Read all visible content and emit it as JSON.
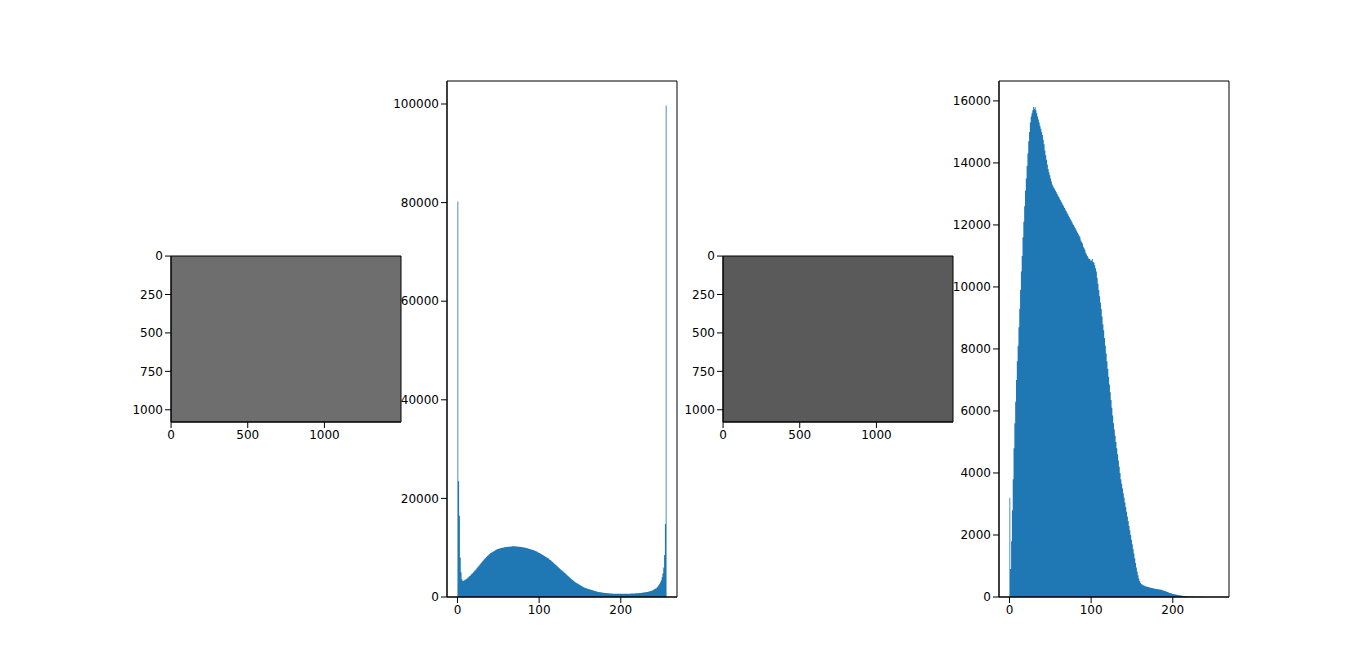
{
  "chart_data": [
    {
      "type": "image",
      "color": "#6e6e6e",
      "xlim": [
        -0.5,
        1499.5
      ],
      "ylim": [
        1079.5,
        -0.5
      ],
      "xticks": [
        0,
        500,
        1000
      ],
      "yticks": [
        0,
        250,
        500,
        750,
        1000
      ]
    },
    {
      "type": "histogram",
      "color": "#1f77b4",
      "xlim": [
        -12.8,
        268.8
      ],
      "ylim": [
        0,
        104665
      ],
      "xticks": [
        0,
        100,
        200
      ],
      "yticks": [
        0,
        20000,
        40000,
        60000,
        80000,
        100000
      ],
      "bins": [
        0,
        1,
        2,
        3,
        4,
        5,
        6,
        7,
        8,
        9,
        10,
        11,
        12,
        13,
        14,
        15,
        16,
        17,
        18,
        19,
        20,
        21,
        22,
        23,
        24,
        25,
        26,
        27,
        28,
        29,
        30,
        31,
        32,
        33,
        34,
        35,
        36,
        37,
        38,
        39,
        40,
        41,
        42,
        43,
        44,
        45,
        46,
        47,
        48,
        49,
        50,
        51,
        52,
        53,
        54,
        55,
        56,
        57,
        58,
        59,
        60,
        61,
        62,
        63,
        64,
        65,
        66,
        67,
        68,
        69,
        70,
        71,
        72,
        73,
        74,
        75,
        76,
        77,
        78,
        79,
        80,
        81,
        82,
        83,
        84,
        85,
        86,
        87,
        88,
        89,
        90,
        91,
        92,
        93,
        94,
        95,
        96,
        97,
        98,
        99,
        100,
        101,
        102,
        103,
        104,
        105,
        106,
        107,
        108,
        109,
        110,
        111,
        112,
        113,
        114,
        115,
        116,
        117,
        118,
        119,
        120,
        121,
        122,
        123,
        124,
        125,
        126,
        127,
        128,
        129,
        130,
        131,
        132,
        133,
        134,
        135,
        136,
        137,
        138,
        139,
        140,
        141,
        142,
        143,
        144,
        145,
        146,
        147,
        148,
        149,
        150,
        151,
        152,
        153,
        154,
        155,
        156,
        157,
        158,
        159,
        160,
        161,
        162,
        163,
        164,
        165,
        166,
        167,
        168,
        169,
        170,
        171,
        172,
        173,
        174,
        175,
        176,
        177,
        178,
        179,
        180,
        181,
        182,
        183,
        184,
        185,
        186,
        187,
        188,
        189,
        190,
        191,
        192,
        193,
        194,
        195,
        196,
        197,
        198,
        199,
        200,
        201,
        202,
        203,
        204,
        205,
        206,
        207,
        208,
        209,
        210,
        211,
        212,
        213,
        214,
        215,
        216,
        217,
        218,
        219,
        220,
        221,
        222,
        223,
        224,
        225,
        226,
        227,
        228,
        229,
        230,
        231,
        232,
        233,
        234,
        235,
        236,
        237,
        238,
        239,
        240,
        241,
        242,
        243,
        244,
        245,
        246,
        247,
        248,
        249,
        250,
        251,
        252,
        253,
        254,
        255,
        256
      ],
      "counts": [
        80200,
        23500,
        16500,
        8000,
        5000,
        3600,
        3300,
        3300,
        3400,
        3500,
        3600,
        3700,
        3900,
        4000,
        4200,
        4300,
        4500,
        4700,
        4800,
        5000,
        5200,
        5400,
        5600,
        5800,
        6000,
        6200,
        6400,
        6600,
        6800,
        7000,
        7200,
        7400,
        7600,
        7800,
        7900,
        8100,
        8300,
        8400,
        8600,
        8700,
        8900,
        9000,
        9100,
        9200,
        9300,
        9400,
        9500,
        9600,
        9700,
        9750,
        9800,
        9850,
        9900,
        9950,
        10000,
        10000,
        10050,
        10100,
        10100,
        10150,
        10150,
        10200,
        10200,
        10200,
        10250,
        10250,
        10250,
        10300,
        10300,
        10300,
        10300,
        10250,
        10250,
        10250,
        10200,
        10200,
        10200,
        10150,
        10150,
        10100,
        10100,
        10050,
        10000,
        10000,
        9950,
        9900,
        9850,
        9800,
        9750,
        9700,
        9650,
        9600,
        9550,
        9500,
        9400,
        9350,
        9300,
        9200,
        9100,
        9000,
        8900,
        8800,
        8700,
        8600,
        8500,
        8400,
        8300,
        8200,
        8100,
        8000,
        7900,
        7800,
        7650,
        7500,
        7400,
        7250,
        7100,
        6950,
        6800,
        6650,
        6500,
        6350,
        6200,
        6050,
        5900,
        5750,
        5600,
        5450,
        5300,
        5150,
        5000,
        4850,
        4700,
        4550,
        4400,
        4250,
        4100,
        3950,
        3800,
        3650,
        3500,
        3400,
        3250,
        3100,
        3000,
        2900,
        2800,
        2700,
        2600,
        2500,
        2400,
        2300,
        2200,
        2100,
        2000,
        1950,
        1850,
        1800,
        1700,
        1650,
        1600,
        1550,
        1500,
        1450,
        1400,
        1350,
        1300,
        1250,
        1200,
        1150,
        1100,
        1050,
        1000,
        1000,
        950,
        950,
        900,
        900,
        850,
        850,
        800,
        800,
        800,
        750,
        750,
        750,
        700,
        700,
        700,
        700,
        650,
        650,
        650,
        650,
        650,
        650,
        650,
        650,
        650,
        650,
        650,
        650,
        650,
        650,
        650,
        650,
        650,
        650,
        650,
        650,
        650,
        650,
        700,
        700,
        700,
        700,
        700,
        700,
        750,
        750,
        750,
        750,
        800,
        800,
        800,
        850,
        850,
        900,
        900,
        950,
        950,
        1000,
        1000,
        1050,
        1100,
        1150,
        1200,
        1250,
        1300,
        1400,
        1500,
        1600,
        1700,
        1800,
        2000,
        2200,
        2400,
        2700,
        3000,
        3400,
        4000,
        4800,
        6000,
        8500,
        14800,
        99700
      ]
    },
    {
      "type": "image",
      "color": "#5a5a5a",
      "xlim": [
        -0.5,
        1499.5
      ],
      "ylim": [
        1079.5,
        -0.5
      ],
      "xticks": [
        0,
        500,
        1000
      ],
      "yticks": [
        0,
        250,
        500,
        750,
        1000
      ]
    },
    {
      "type": "histogram",
      "color": "#1f77b4",
      "xlim": [
        -12.8,
        268.8
      ],
      "ylim": [
        0,
        16642
      ],
      "xticks": [
        0,
        100,
        200
      ],
      "yticks": [
        0,
        2000,
        4000,
        6000,
        8000,
        10000,
        12000,
        14000,
        16000
      ],
      "bins": [
        0,
        1,
        2,
        3,
        4,
        5,
        6,
        7,
        8,
        9,
        10,
        11,
        12,
        13,
        14,
        15,
        16,
        17,
        18,
        19,
        20,
        21,
        22,
        23,
        24,
        25,
        26,
        27,
        28,
        29,
        30,
        31,
        32,
        33,
        34,
        35,
        36,
        37,
        38,
        39,
        40,
        41,
        42,
        43,
        44,
        45,
        46,
        47,
        48,
        49,
        50,
        51,
        52,
        53,
        54,
        55,
        56,
        57,
        58,
        59,
        60,
        61,
        62,
        63,
        64,
        65,
        66,
        67,
        68,
        69,
        70,
        71,
        72,
        73,
        74,
        75,
        76,
        77,
        78,
        79,
        80,
        81,
        82,
        83,
        84,
        85,
        86,
        87,
        88,
        89,
        90,
        91,
        92,
        93,
        94,
        95,
        96,
        97,
        98,
        99,
        100,
        101,
        102,
        103,
        104,
        105,
        106,
        107,
        108,
        109,
        110,
        111,
        112,
        113,
        114,
        115,
        116,
        117,
        118,
        119,
        120,
        121,
        122,
        123,
        124,
        125,
        126,
        127,
        128,
        129,
        130,
        131,
        132,
        133,
        134,
        135,
        136,
        137,
        138,
        139,
        140,
        141,
        142,
        143,
        144,
        145,
        146,
        147,
        148,
        149,
        150,
        151,
        152,
        153,
        154,
        155,
        156,
        157,
        158,
        159,
        160,
        161,
        162,
        163,
        164,
        165,
        166,
        167,
        168,
        169,
        170,
        171,
        172,
        173,
        174,
        175,
        176,
        177,
        178,
        179,
        180,
        181,
        182,
        183,
        184,
        185,
        186,
        187,
        188,
        189,
        190,
        191,
        192,
        193,
        194,
        195,
        196,
        197,
        198,
        199,
        200,
        201,
        202,
        203,
        204,
        205,
        206,
        207,
        208,
        209,
        210,
        211,
        212,
        213,
        214,
        215,
        216,
        217,
        218,
        219,
        220,
        221,
        222,
        223,
        224,
        225,
        226,
        227,
        228,
        229,
        230,
        231,
        232,
        233,
        234,
        235,
        236,
        237,
        238,
        239,
        240,
        241,
        242,
        243,
        244,
        245,
        246,
        247,
        248,
        249,
        250,
        251,
        252,
        253,
        254,
        255,
        256
      ],
      "counts": [
        3200,
        900,
        1800,
        2800,
        3800,
        4800,
        5600,
        6300,
        7000,
        7600,
        8100,
        8700,
        9300,
        9900,
        10500,
        11000,
        11600,
        12100,
        12600,
        13100,
        13500,
        13900,
        14300,
        14700,
        15000,
        15300,
        15500,
        15600,
        15700,
        15800,
        15750,
        15800,
        15700,
        15600,
        15500,
        15400,
        15300,
        15200,
        15100,
        15000,
        14900,
        14750,
        14600,
        14400,
        14250,
        14100,
        13950,
        13800,
        13700,
        13600,
        13500,
        13400,
        13300,
        13250,
        13200,
        13150,
        13100,
        13050,
        13000,
        12950,
        12900,
        12850,
        12800,
        12750,
        12700,
        12650,
        12600,
        12550,
        12500,
        12450,
        12400,
        12350,
        12300,
        12250,
        12200,
        12150,
        12100,
        12050,
        12000,
        11950,
        11900,
        11850,
        11800,
        11750,
        11700,
        11650,
        11600,
        11500,
        11450,
        11400,
        11300,
        11250,
        11200,
        11100,
        11050,
        11000,
        10950,
        10900,
        10900,
        10850,
        10850,
        10900,
        10800,
        10800,
        10700,
        10600,
        10500,
        10300,
        10100,
        9900,
        9700,
        9500,
        9300,
        9050,
        8800,
        8600,
        8350,
        8100,
        7850,
        7600,
        7350,
        7100,
        6850,
        6600,
        6350,
        6100,
        5850,
        5600,
        5400,
        5200,
        5000,
        4800,
        4600,
        4400,
        4200,
        4000,
        3800,
        3650,
        3500,
        3350,
        3200,
        3050,
        2900,
        2750,
        2600,
        2450,
        2300,
        2150,
        2000,
        1850,
        1700,
        1550,
        1400,
        1250,
        1100,
        950,
        820,
        700,
        600,
        520,
        460,
        420,
        400,
        380,
        370,
        360,
        350,
        340,
        330,
        320,
        320,
        310,
        300,
        300,
        290,
        280,
        280,
        270,
        270,
        260,
        260,
        250,
        250,
        240,
        240,
        230,
        230,
        220,
        210,
        200,
        190,
        180,
        170,
        160,
        150,
        140,
        130,
        120,
        110,
        100,
        95,
        90,
        85,
        80,
        75,
        70,
        65,
        60,
        55,
        50,
        45,
        40,
        38,
        35,
        32,
        30,
        28,
        25,
        22,
        20,
        18,
        16,
        15,
        14,
        13,
        12,
        11,
        10,
        9,
        8,
        8,
        7,
        7,
        6,
        6,
        5,
        5,
        5,
        4,
        4,
        4,
        3,
        3,
        3,
        3,
        2,
        2,
        2,
        2,
        2,
        1,
        1,
        1,
        1,
        1,
        1
      ]
    }
  ]
}
